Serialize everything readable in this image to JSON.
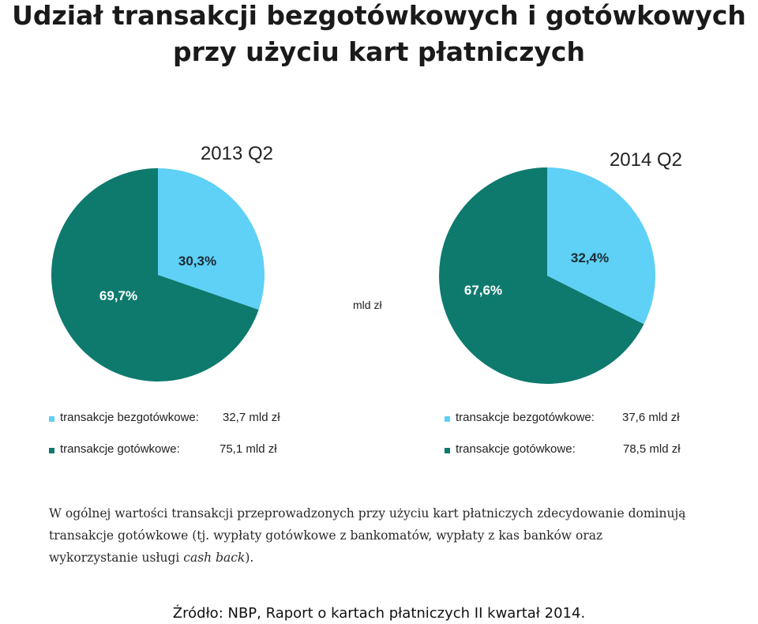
{
  "title_line1": "Udział transakcji bezgotówkowych i gotówkowych",
  "title_line2": "przy użyciu kart płatniczych",
  "colors": {
    "cashless": "#5fd0f6",
    "cash": "#0e7a6e",
    "text": "#222222"
  },
  "chart_data": [
    {
      "type": "pie",
      "title": "2013 Q2",
      "slices": [
        {
          "label": "transakcje bezgotówkowe",
          "value": 30.3,
          "value_label": "30,3%",
          "color": "#5fd0f6"
        },
        {
          "label": "transakcje gotówkowe",
          "value": 69.7,
          "value_label": "69,7%",
          "color": "#0e7a6e"
        }
      ],
      "legend": [
        {
          "label": "transakcje bezgotówkowe:",
          "value": "32,7 mld zł"
        },
        {
          "label": "transakcje gotówkowe:",
          "value": "75,1 mld zł"
        }
      ]
    },
    {
      "type": "pie",
      "title": "2014 Q2",
      "slices": [
        {
          "label": "transakcje bezgotówkowe",
          "value": 32.4,
          "value_label": "32,4%",
          "color": "#5fd0f6"
        },
        {
          "label": "transakcje gotówkowe",
          "value": 67.6,
          "value_label": "67,6%",
          "color": "#0e7a6e"
        }
      ],
      "legend": [
        {
          "label": "transakcje bezgotówkowe:",
          "value": "37,6 mld zł"
        },
        {
          "label": "transakcje gotówkowe:",
          "value": "78,5 mld zł"
        }
      ]
    }
  ],
  "mid_label": "mld zł",
  "description": {
    "text": "W ogólnej wartości transakcji przeprowadzonych przy użyciu kart płatniczych zdecydowanie dominują transakcje gotówkowe (tj. wypłaty gotówkowe z bankomatów, wypłaty z kas banków oraz wykorzystanie usługi ",
    "emphasis": "cash back",
    "suffix": ")."
  },
  "source": "Źródło: NBP, Raport o kartach płatniczych II kwartał 2014."
}
